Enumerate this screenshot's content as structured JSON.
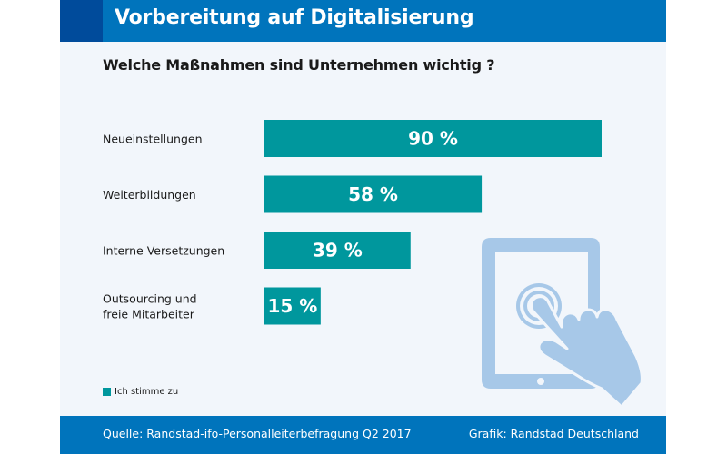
{
  "header": {
    "title": "Vorbereitung auf Digitalisierung",
    "subtitle": "Welche Maßnahmen sind Unternehmen wichtig ?"
  },
  "footer": {
    "source": "Quelle: Randstad-ifo-Personalleiterbefragung Q2 2017",
    "credit": "Grafik: Randstad Deutschland"
  },
  "colors": {
    "header_blue": "#0074bc",
    "header_accent": "#004b9b",
    "bar_teal": "#00979d",
    "illustration_blue": "#a7c8e8",
    "panel_background": "#f2f6fb"
  },
  "illustration": {
    "icon": "tablet-touch-hand-icon"
  },
  "chart_data": {
    "type": "bar",
    "orientation": "horizontal",
    "title": "Vorbereitung auf Digitalisierung",
    "subtitle": "Welche Maßnahmen sind Unternehmen wichtig ?",
    "categories": [
      [
        "Neueinstellungen"
      ],
      [
        "Weiterbildungen"
      ],
      [
        "Interne Versetzungen"
      ],
      [
        "Outsourcing und",
        "freie Mitarbeiter"
      ]
    ],
    "series": [
      {
        "name": "Ich stimme zu",
        "values": [
          90,
          58,
          39,
          15
        ],
        "labels": [
          "90 %",
          "58 %",
          "39 %",
          "15 %"
        ]
      }
    ],
    "xlabel": "",
    "ylabel": "",
    "xlim": [
      0,
      100
    ],
    "unit": "%",
    "grid": false,
    "legend": {
      "position": "bottom-left",
      "entries": [
        "Ich stimme zu"
      ]
    }
  }
}
